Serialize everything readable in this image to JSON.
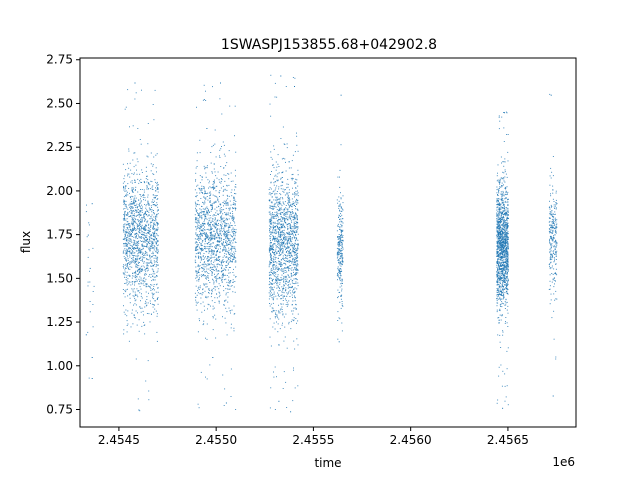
{
  "chart_data": {
    "type": "scatter",
    "title": "1SWASPJ153855.68+042902.8",
    "xlabel": "time",
    "ylabel": "flux",
    "x_offset_label": "1e6",
    "xlim": [
      2.4543,
      2.45685
    ],
    "ylim": [
      0.65,
      2.76
    ],
    "x_ticks": [
      {
        "value": 2.4545,
        "label": "2.4545"
      },
      {
        "value": 2.455,
        "label": "2.4550"
      },
      {
        "value": 2.4555,
        "label": "2.4555"
      },
      {
        "value": 2.456,
        "label": "2.4560"
      },
      {
        "value": 2.4565,
        "label": "2.4565"
      }
    ],
    "y_ticks": [
      {
        "value": 0.75,
        "label": "0.75"
      },
      {
        "value": 1.0,
        "label": "1.00"
      },
      {
        "value": 1.25,
        "label": "1.25"
      },
      {
        "value": 1.5,
        "label": "1.50"
      },
      {
        "value": 1.75,
        "label": "1.75"
      },
      {
        "value": 2.0,
        "label": "2.00"
      },
      {
        "value": 2.25,
        "label": "2.25"
      },
      {
        "value": 2.5,
        "label": "2.50"
      },
      {
        "value": 2.75,
        "label": "2.75"
      }
    ],
    "grid": false,
    "legend": "none",
    "marker_color": "#1f77b4",
    "series": [
      {
        "points": [
          {
            "x": 2.45435,
            "y": 1.56
          },
          {
            "x": 2.45436,
            "y": 1.93
          },
          {
            "x": 2.45433,
            "y": 1.18
          },
          {
            "x": 2.45436,
            "y": 1.05
          },
          {
            "x": 2.45434,
            "y": 1.75
          },
          {
            "x": 2.45436,
            "y": 0.93
          },
          {
            "x": 2.45455,
            "y": 1.75
          },
          {
            "x": 2.45458,
            "y": 2.62
          },
          {
            "x": 2.45462,
            "y": 1.55
          },
          {
            "x": 2.45465,
            "y": 2.05
          },
          {
            "x": 2.45468,
            "y": 1.35
          },
          {
            "x": 2.4546,
            "y": 0.75
          },
          {
            "x": 2.45492,
            "y": 1.7
          },
          {
            "x": 2.45495,
            "y": 2.36
          },
          {
            "x": 2.45498,
            "y": 1.05
          },
          {
            "x": 2.45502,
            "y": 2.62
          },
          {
            "x": 2.45505,
            "y": 0.79
          },
          {
            "x": 2.45508,
            "y": 1.6
          },
          {
            "x": 2.4553,
            "y": 1.7
          },
          {
            "x": 2.45533,
            "y": 2.66
          },
          {
            "x": 2.45536,
            "y": 1.4
          },
          {
            "x": 2.4554,
            "y": 2.6
          },
          {
            "x": 2.45538,
            "y": 0.74
          },
          {
            "x": 2.45532,
            "y": 0.8
          },
          {
            "x": 2.45563,
            "y": 1.67
          },
          {
            "x": 2.45564,
            "y": 2.55
          },
          {
            "x": 2.45563,
            "y": 1.14
          },
          {
            "x": 2.45646,
            "y": 1.68
          },
          {
            "x": 2.45648,
            "y": 2.45
          },
          {
            "x": 2.45647,
            "y": 0.76
          },
          {
            "x": 2.45673,
            "y": 1.73
          },
          {
            "x": 2.45672,
            "y": 2.55
          },
          {
            "x": 2.45673,
            "y": 0.83
          }
        ]
      }
    ],
    "clusters": [
      {
        "x_min": 2.45433,
        "x_max": 2.45437,
        "y_mean": 1.55,
        "y_sd": 0.3,
        "y_min": 0.9,
        "y_max": 1.95,
        "density": "sparse"
      },
      {
        "x_min": 2.45452,
        "x_max": 2.4547,
        "y_mean": 1.72,
        "y_sd": 0.2,
        "y_min": 0.74,
        "y_max": 2.66,
        "density": "dense"
      },
      {
        "x_min": 2.45489,
        "x_max": 2.4551,
        "y_mean": 1.72,
        "y_sd": 0.2,
        "y_min": 0.73,
        "y_max": 2.65,
        "density": "dense"
      },
      {
        "x_min": 2.45527,
        "x_max": 2.45542,
        "y_mean": 1.7,
        "y_sd": 0.21,
        "y_min": 0.73,
        "y_max": 2.67,
        "density": "dense"
      },
      {
        "x_min": 2.45562,
        "x_max": 2.45565,
        "y_mean": 1.68,
        "y_sd": 0.16,
        "y_min": 1.13,
        "y_max": 2.56,
        "density": "medium"
      },
      {
        "x_min": 2.45644,
        "x_max": 2.4565,
        "y_mean": 1.68,
        "y_sd": 0.18,
        "y_min": 0.76,
        "y_max": 2.47,
        "density": "dense"
      },
      {
        "x_min": 2.45671,
        "x_max": 2.45675,
        "y_mean": 1.72,
        "y_sd": 0.16,
        "y_min": 0.82,
        "y_max": 2.56,
        "density": "medium"
      }
    ]
  }
}
